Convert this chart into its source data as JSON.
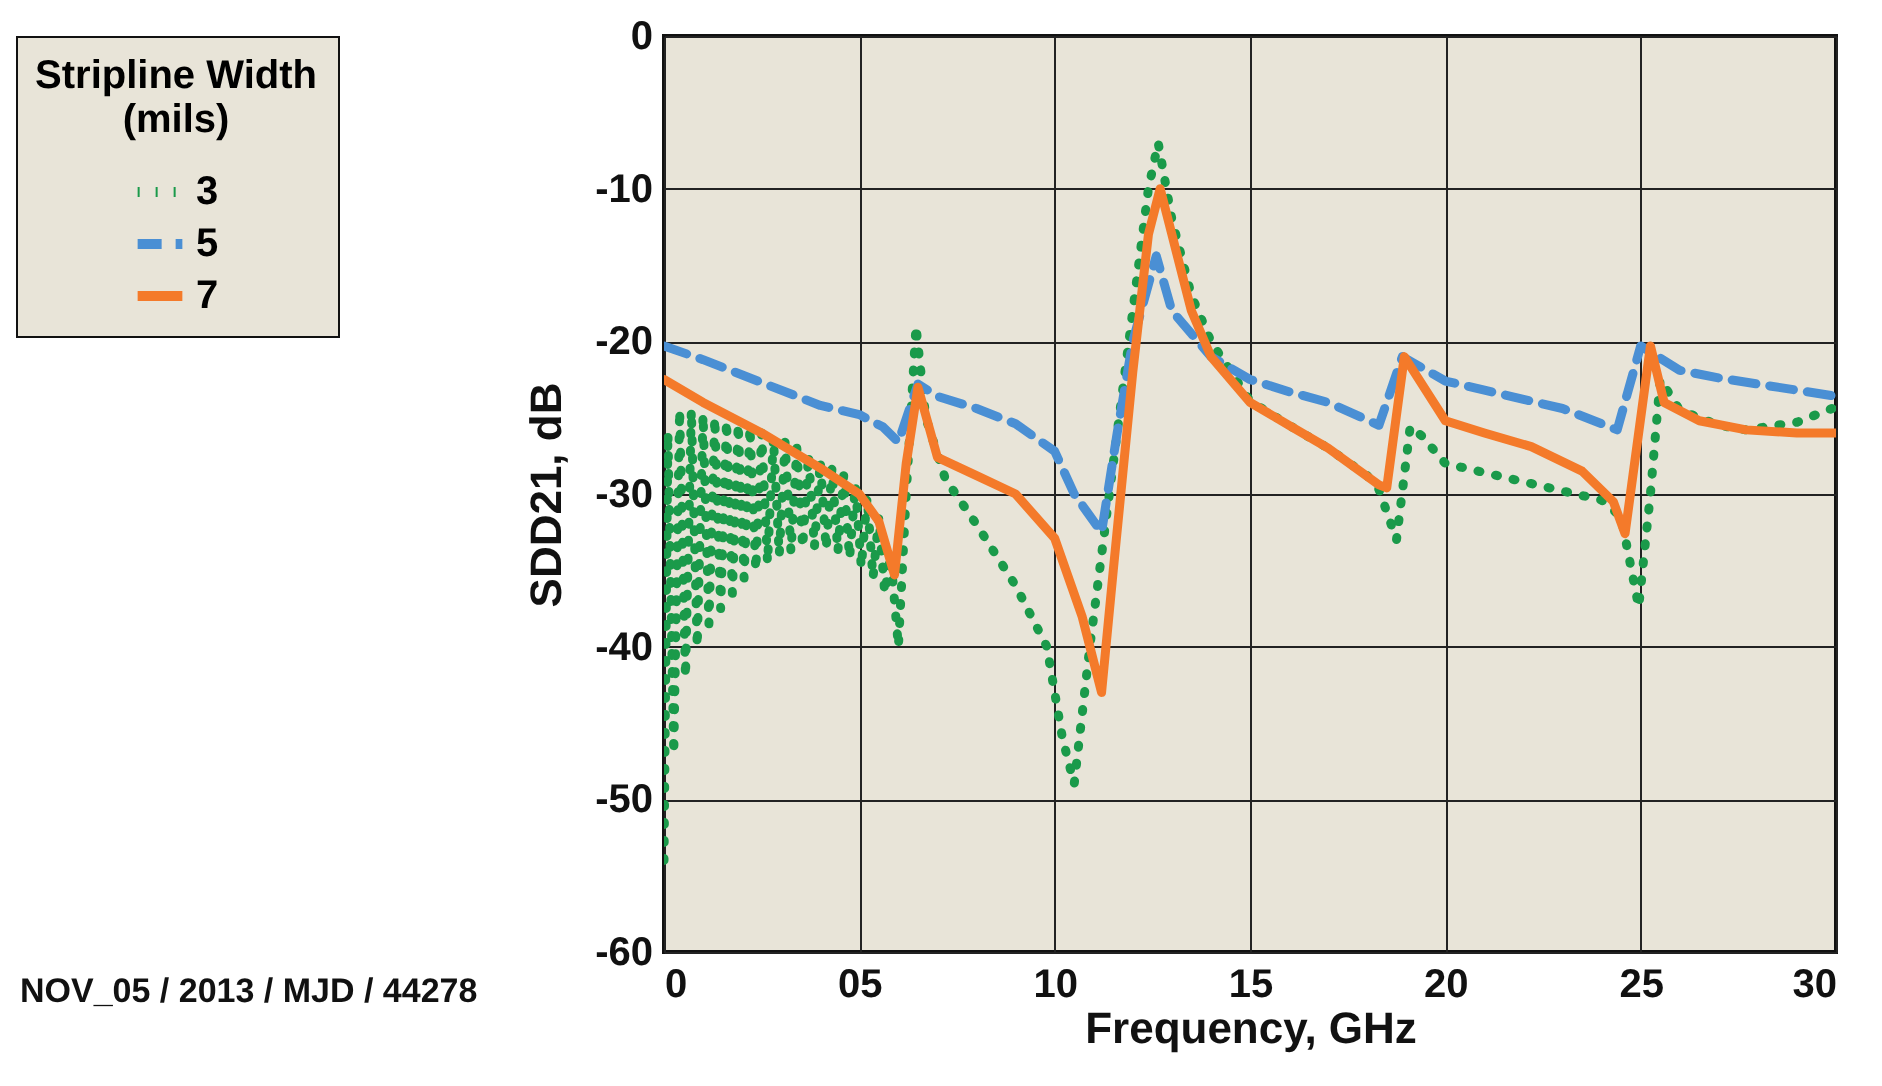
{
  "chart_data": {
    "type": "line",
    "xlabel": "Frequency,  GHz",
    "ylabel": "SDD21,  dB",
    "legend_title": "Stripline Width (mils)",
    "legend": "top left",
    "grid": true,
    "xlim": [
      0,
      30
    ],
    "xticks": [
      0,
      {
        "value": 5,
        "label": "05"
      },
      10,
      15,
      20,
      25,
      30
    ],
    "ylim": [
      -60,
      0
    ],
    "yticks": [
      -60,
      -50,
      -40,
      -30,
      -20,
      -10,
      0
    ],
    "annotations": [
      "NOV_05 / 2013 / MJD / 44278"
    ],
    "series": [
      {
        "name": "3",
        "color": "#1a9a4a",
        "line_style": "dotted",
        "x": [
          0,
          0.1,
          0.25,
          0.4,
          0.55,
          0.7,
          0.85,
          1.0,
          1.15,
          1.3,
          1.45,
          1.6,
          1.75,
          1.9,
          2.05,
          2.2,
          2.35,
          2.5,
          2.65,
          2.8,
          2.95,
          3.1,
          3.25,
          3.4,
          3.55,
          3.7,
          3.85,
          4.0,
          4.15,
          4.3,
          4.45,
          4.6,
          4.75,
          4.9,
          5.05,
          5.2,
          5.35,
          5.5,
          5.65,
          5.8,
          6.0,
          6.2,
          6.45,
          6.7,
          7.2,
          8,
          9,
          9.8,
          10.2,
          10.5,
          10.9,
          11.5,
          12,
          12.4,
          12.65,
          13,
          13.5,
          14,
          15,
          16,
          17,
          18,
          18.3,
          18.75,
          19.1,
          19.4,
          20,
          21,
          22,
          23,
          24,
          24.5,
          24.95,
          25.25,
          25.5,
          26,
          27,
          27.7,
          29,
          30
        ],
        "values": [
          -54,
          -26,
          -47,
          -24.5,
          -42,
          -24.5,
          -40,
          -24.8,
          -38.5,
          -25,
          -37.5,
          -25.2,
          -36.5,
          -25.4,
          -35.5,
          -25.6,
          -35,
          -26,
          -34.5,
          -26.3,
          -34,
          -26.6,
          -33.8,
          -27,
          -33.5,
          -27.4,
          -33.5,
          -27.8,
          -33.6,
          -28.3,
          -33.8,
          -28.8,
          -34.2,
          -29.4,
          -34.8,
          -30.2,
          -35.5,
          -31.5,
          -36.5,
          -34,
          -40,
          -30,
          -19,
          -25,
          -29,
          -32,
          -36,
          -40,
          -46,
          -49,
          -40,
          -28,
          -18,
          -10,
          -7,
          -12,
          -17,
          -20,
          -23.9,
          -25.5,
          -27,
          -28.8,
          -29.7,
          -33,
          -25.6,
          -26.2,
          -28,
          -28.6,
          -29.2,
          -29.8,
          -30.4,
          -31.5,
          -37.4,
          -30,
          -22.5,
          -24.5,
          -25.5,
          -25.8,
          -25.3,
          -24.3
        ]
      },
      {
        "name": "5",
        "color": "#4a8fd4",
        "line_style": "dashed",
        "x": [
          0,
          1,
          2.5,
          4,
          5,
          5.6,
          6.0,
          6.5,
          7,
          8,
          9,
          10,
          10.5,
          11.2,
          11.6,
          12,
          12.6,
          13,
          14,
          15,
          16,
          17,
          18.3,
          18.9,
          20,
          21,
          22,
          23,
          24.4,
          25.0,
          26,
          27,
          28,
          29,
          30
        ],
        "values": [
          -20.3,
          -21.2,
          -22.7,
          -24.2,
          -24.8,
          -25.6,
          -26.6,
          -22.8,
          -23.6,
          -24.4,
          -25.4,
          -27.2,
          -30,
          -32.5,
          -26,
          -20,
          -14.4,
          -18,
          -21,
          -22.5,
          -23.3,
          -24,
          -25.5,
          -21,
          -22.6,
          -23.2,
          -23.8,
          -24.4,
          -25.8,
          -20.3,
          -21.9,
          -22.4,
          -22.8,
          -23.2,
          -23.6
        ]
      },
      {
        "name": "7",
        "color": "#f47a2a",
        "line_style": "solid",
        "x": [
          0,
          1,
          2.5,
          4,
          5,
          5.5,
          5.9,
          6.2,
          6.5,
          7,
          8,
          9,
          10,
          10.7,
          11.2,
          11.5,
          12,
          12.4,
          12.7,
          13,
          13.5,
          14,
          15,
          16,
          17,
          18.3,
          18.5,
          18.95,
          20,
          21,
          22.2,
          23.5,
          24.3,
          24.6,
          25.25,
          25.6,
          26.5,
          27.7,
          29,
          30
        ],
        "values": [
          -22.5,
          -24,
          -26,
          -28.3,
          -30,
          -31.8,
          -35.3,
          -28,
          -23,
          -27.6,
          -28.8,
          -30,
          -32.9,
          -38,
          -43,
          -35,
          -22,
          -13,
          -10,
          -13,
          -18,
          -21,
          -24,
          -25.5,
          -27,
          -29.4,
          -29.6,
          -21,
          -25.2,
          -26,
          -26.9,
          -28.5,
          -30.5,
          -32.6,
          -20.3,
          -24,
          -25.2,
          -25.8,
          -26,
          -26
        ]
      }
    ]
  }
}
